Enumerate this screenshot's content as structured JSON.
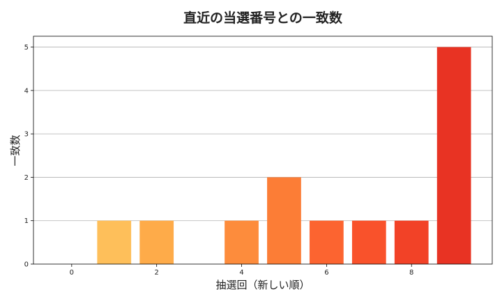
{
  "chart_data": {
    "type": "bar",
    "title": "直近の当選番号との一致数",
    "xlabel": "抽選回（新しい順）",
    "ylabel": "一致数",
    "x": [
      0,
      1,
      2,
      3,
      4,
      5,
      6,
      7,
      8,
      9
    ],
    "values": [
      0,
      1,
      1,
      0,
      1,
      2,
      1,
      1,
      1,
      5
    ],
    "colors": [
      "#fed976",
      "#febf5a",
      "#feab49",
      "#fd9a43",
      "#fd8c3c",
      "#fc7d36",
      "#fc6430",
      "#f9522b",
      "#f24227",
      "#e83323"
    ],
    "xticks": [
      0,
      2,
      4,
      6,
      8
    ],
    "yticks": [
      0,
      1,
      2,
      3,
      4,
      5
    ],
    "xlim": [
      -0.9,
      9.9
    ],
    "ylim": [
      0,
      5.25
    ],
    "grid": "horizontal"
  }
}
